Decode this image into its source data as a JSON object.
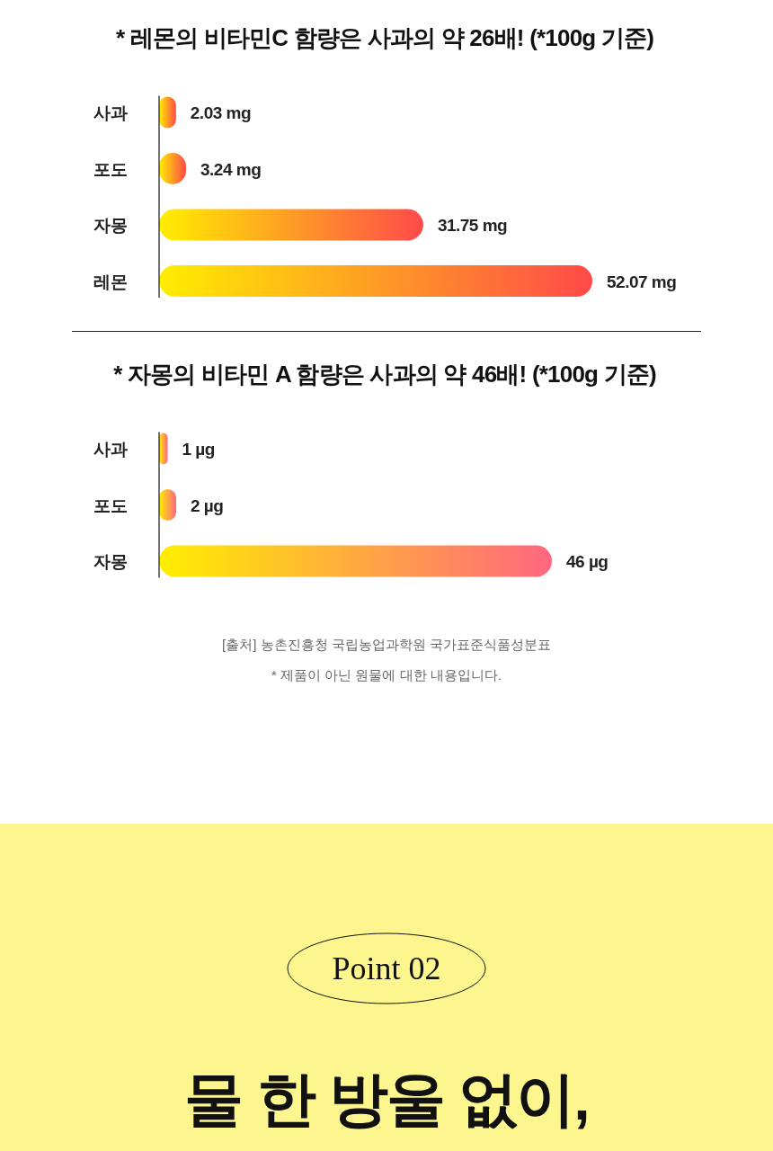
{
  "chart_data": [
    {
      "type": "bar",
      "orientation": "horizontal",
      "title": "* 레몬의 비타민C 함량은 사과의 약 26배! (*100g 기준)",
      "categories": [
        "사과",
        "포도",
        "자몽",
        "레몬"
      ],
      "series": [
        {
          "color": "#ff4a4a",
          "values": [
            2.03,
            3.24,
            31.75,
            52.07
          ],
          "value_labels": [
            "2.03 mg",
            "3.24 mg",
            "31.75 mg",
            "52.07 mg"
          ]
        }
      ]
    },
    {
      "type": "bar",
      "orientation": "horizontal",
      "title": "* 자몽의 비타민 A 함량은 사과의 약 46배! (*100g 기준)",
      "categories": [
        "사과",
        "포도",
        "자몽"
      ],
      "series": [
        {
          "color": "#ff6680",
          "values": [
            1,
            2,
            46
          ],
          "value_labels": [
            "1 µg",
            "2 µg",
            "46 µg"
          ]
        }
      ],
      "annotations": [
        "[출처]  농촌진흥청 국립농업과학원 국가표준식품성분표",
        "* 제품이 아닌 원물에 대한 내용입니다.",
        "Point  02",
        "물 한 방울 없이,"
      ]
    }
  ]
}
